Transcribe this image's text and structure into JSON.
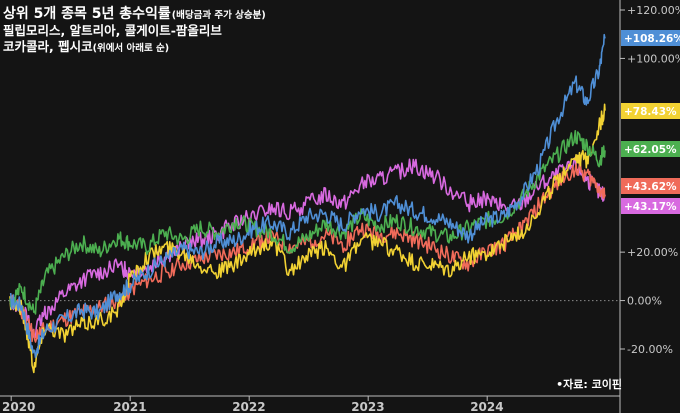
{
  "header": {
    "title": "상위 5개 종목 5년 총수익률",
    "title_note": "(배당금과 주가 상승분)",
    "subtitle_line1": "필립모리스, 알트리아, 콜게이트-팜올리브",
    "subtitle_line2": "코카콜라, 펩시코",
    "subtitle_note": "(위에서 아래로 순)"
  },
  "source": "•자료: 코이핀",
  "chart_data": {
    "type": "line",
    "x_range": [
      "2020-01",
      "2024-12"
    ],
    "x_ticks": [
      "2020",
      "2021",
      "2022",
      "2023",
      "2024"
    ],
    "y_ticks": [
      "+120.00%",
      "+100.00%",
      "+20.00%",
      "0.00%",
      "-20.00%"
    ],
    "ylim": [
      -30,
      122
    ],
    "y_unit": "%",
    "grid": false,
    "series": [
      {
        "label": "+108.26%",
        "color": "#4f8fd6",
        "points": [
          [
            2020.0,
            0
          ],
          [
            2020.1,
            -2
          ],
          [
            2020.2,
            -22
          ],
          [
            2020.3,
            -12
          ],
          [
            2020.45,
            -8
          ],
          [
            2020.6,
            -4
          ],
          [
            2020.75,
            -5
          ],
          [
            2020.9,
            3
          ],
          [
            2021.0,
            6
          ],
          [
            2021.15,
            12
          ],
          [
            2021.3,
            17
          ],
          [
            2021.45,
            21
          ],
          [
            2021.6,
            20
          ],
          [
            2021.75,
            24
          ],
          [
            2021.9,
            25
          ],
          [
            2022.05,
            30
          ],
          [
            2022.2,
            32
          ],
          [
            2022.35,
            28
          ],
          [
            2022.5,
            35
          ],
          [
            2022.65,
            36
          ],
          [
            2022.8,
            31
          ],
          [
            2022.95,
            38
          ],
          [
            2023.1,
            36
          ],
          [
            2023.25,
            40
          ],
          [
            2023.4,
            37
          ],
          [
            2023.55,
            35
          ],
          [
            2023.7,
            32
          ],
          [
            2023.85,
            27
          ],
          [
            2024.0,
            33
          ],
          [
            2024.15,
            35
          ],
          [
            2024.3,
            43
          ],
          [
            2024.45,
            56
          ],
          [
            2024.6,
            75
          ],
          [
            2024.75,
            90
          ],
          [
            2024.85,
            82
          ],
          [
            2024.95,
            95
          ],
          [
            2025.0,
            108.26
          ]
        ]
      },
      {
        "label": "+78.43%",
        "color": "#f2d233",
        "points": [
          [
            2020.0,
            0
          ],
          [
            2020.1,
            -3
          ],
          [
            2020.2,
            -27
          ],
          [
            2020.3,
            -10
          ],
          [
            2020.45,
            -14
          ],
          [
            2020.6,
            -10
          ],
          [
            2020.75,
            -8
          ],
          [
            2020.9,
            -5
          ],
          [
            2021.0,
            8
          ],
          [
            2021.15,
            18
          ],
          [
            2021.3,
            22
          ],
          [
            2021.45,
            20
          ],
          [
            2021.6,
            15
          ],
          [
            2021.75,
            12
          ],
          [
            2021.9,
            15
          ],
          [
            2022.05,
            20
          ],
          [
            2022.2,
            25
          ],
          [
            2022.35,
            12
          ],
          [
            2022.5,
            18
          ],
          [
            2022.65,
            22
          ],
          [
            2022.8,
            14
          ],
          [
            2022.95,
            25
          ],
          [
            2023.1,
            24
          ],
          [
            2023.25,
            20
          ],
          [
            2023.4,
            15
          ],
          [
            2023.55,
            14
          ],
          [
            2023.7,
            12
          ],
          [
            2023.85,
            18
          ],
          [
            2024.0,
            20
          ],
          [
            2024.15,
            24
          ],
          [
            2024.3,
            28
          ],
          [
            2024.45,
            38
          ],
          [
            2024.6,
            50
          ],
          [
            2024.75,
            60
          ],
          [
            2024.85,
            58
          ],
          [
            2024.95,
            72
          ],
          [
            2025.0,
            78.43
          ]
        ]
      },
      {
        "label": "+62.05%",
        "color": "#4caf50",
        "points": [
          [
            2020.0,
            0
          ],
          [
            2020.1,
            5
          ],
          [
            2020.2,
            -5
          ],
          [
            2020.3,
            10
          ],
          [
            2020.45,
            18
          ],
          [
            2020.6,
            24
          ],
          [
            2020.75,
            20
          ],
          [
            2020.9,
            26
          ],
          [
            2021.0,
            24
          ],
          [
            2021.15,
            22
          ],
          [
            2021.3,
            28
          ],
          [
            2021.45,
            25
          ],
          [
            2021.6,
            30
          ],
          [
            2021.75,
            28
          ],
          [
            2021.9,
            33
          ],
          [
            2022.05,
            30
          ],
          [
            2022.2,
            28
          ],
          [
            2022.35,
            22
          ],
          [
            2022.5,
            26
          ],
          [
            2022.65,
            32
          ],
          [
            2022.8,
            28
          ],
          [
            2022.95,
            35
          ],
          [
            2023.1,
            31
          ],
          [
            2023.25,
            33
          ],
          [
            2023.4,
            30
          ],
          [
            2023.55,
            28
          ],
          [
            2023.7,
            26
          ],
          [
            2023.85,
            30
          ],
          [
            2024.0,
            33
          ],
          [
            2024.15,
            35
          ],
          [
            2024.3,
            42
          ],
          [
            2024.45,
            52
          ],
          [
            2024.6,
            60
          ],
          [
            2024.75,
            68
          ],
          [
            2024.85,
            64
          ],
          [
            2024.95,
            58
          ],
          [
            2025.0,
            62.05
          ]
        ]
      },
      {
        "label": "+43.62%",
        "color": "#f06b5a",
        "points": [
          [
            2020.0,
            0
          ],
          [
            2020.1,
            -5
          ],
          [
            2020.2,
            -15
          ],
          [
            2020.3,
            -12
          ],
          [
            2020.45,
            -8
          ],
          [
            2020.6,
            -5
          ],
          [
            2020.75,
            -3
          ],
          [
            2020.9,
            0
          ],
          [
            2021.0,
            4
          ],
          [
            2021.15,
            8
          ],
          [
            2021.3,
            12
          ],
          [
            2021.45,
            15
          ],
          [
            2021.6,
            17
          ],
          [
            2021.75,
            19
          ],
          [
            2021.9,
            20
          ],
          [
            2022.05,
            24
          ],
          [
            2022.2,
            26
          ],
          [
            2022.35,
            22
          ],
          [
            2022.5,
            24
          ],
          [
            2022.65,
            27
          ],
          [
            2022.8,
            23
          ],
          [
            2022.95,
            30
          ],
          [
            2023.1,
            27
          ],
          [
            2023.25,
            28
          ],
          [
            2023.4,
            25
          ],
          [
            2023.55,
            22
          ],
          [
            2023.7,
            18
          ],
          [
            2023.85,
            15
          ],
          [
            2024.0,
            20
          ],
          [
            2024.15,
            23
          ],
          [
            2024.3,
            30
          ],
          [
            2024.45,
            40
          ],
          [
            2024.6,
            48
          ],
          [
            2024.75,
            55
          ],
          [
            2024.85,
            52
          ],
          [
            2024.95,
            47
          ],
          [
            2025.0,
            43.62
          ]
        ]
      },
      {
        "label": "+43.17%",
        "color": "#d86ae0",
        "points": [
          [
            2020.0,
            0
          ],
          [
            2020.1,
            -2
          ],
          [
            2020.2,
            -14
          ],
          [
            2020.3,
            -5
          ],
          [
            2020.45,
            3
          ],
          [
            2020.6,
            8
          ],
          [
            2020.75,
            12
          ],
          [
            2020.9,
            14
          ],
          [
            2021.0,
            12
          ],
          [
            2021.15,
            14
          ],
          [
            2021.3,
            18
          ],
          [
            2021.45,
            22
          ],
          [
            2021.6,
            25
          ],
          [
            2021.75,
            28
          ],
          [
            2021.9,
            32
          ],
          [
            2022.05,
            35
          ],
          [
            2022.2,
            38
          ],
          [
            2022.35,
            36
          ],
          [
            2022.5,
            40
          ],
          [
            2022.65,
            44
          ],
          [
            2022.8,
            40
          ],
          [
            2022.95,
            48
          ],
          [
            2023.1,
            50
          ],
          [
            2023.25,
            53
          ],
          [
            2023.4,
            56
          ],
          [
            2023.55,
            52
          ],
          [
            2023.7,
            46
          ],
          [
            2023.85,
            40
          ],
          [
            2024.0,
            42
          ],
          [
            2024.15,
            38
          ],
          [
            2024.3,
            40
          ],
          [
            2024.45,
            48
          ],
          [
            2024.6,
            52
          ],
          [
            2024.75,
            56
          ],
          [
            2024.85,
            50
          ],
          [
            2024.95,
            45
          ],
          [
            2025.0,
            43.17
          ]
        ]
      }
    ]
  }
}
